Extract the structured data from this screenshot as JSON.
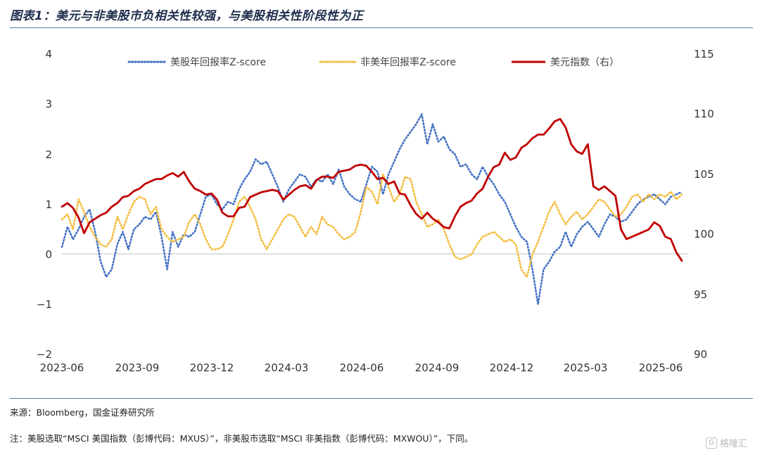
{
  "header": {
    "title": "图表1：美元与非美股市负相关性较强，与美股相关性阶段性为正"
  },
  "footer": {
    "source": "来源：Bloomberg，国金证券研究所",
    "note": "注：美股选取“MSCI 美国指数（彭博代码：MXUS）”，非美股市选取“MSCI 非美指数（彭博代码：MXWOU）”，下同。",
    "watermark": "格隆汇",
    "watermark_mark": "G"
  },
  "chart_data": {
    "type": "line",
    "title": "",
    "xlabel": "",
    "ylabel": "",
    "x_ticks": [
      "2023-06",
      "2023-09",
      "2023-12",
      "2024-03",
      "2024-06",
      "2024-09",
      "2024-12",
      "2025-03",
      "2025-06"
    ],
    "x_range": [
      "2023-06-01",
      "2025-08-01"
    ],
    "ylim": [
      -2,
      4
    ],
    "y_ticks": [
      4,
      3,
      2,
      1,
      0,
      -1,
      -2
    ],
    "y_tick_labels": [
      "4",
      "3",
      "2",
      "1",
      "0",
      "−1",
      "−2"
    ],
    "y2lim": [
      90,
      115
    ],
    "y2_ticks": [
      115,
      110,
      105,
      100,
      95,
      90
    ],
    "grid": false,
    "legend": "top",
    "colors": {
      "us": "#4472c4",
      "nonus": "#f4bc3c",
      "dxy": "#c00000",
      "axis": "#bfbfbf"
    },
    "series": [
      {
        "name": "美股年回报率Z-score",
        "axis": "left",
        "style": "dotted",
        "x": [
          "2023-06-01",
          "2023-06-08",
          "2023-06-15",
          "2023-06-22",
          "2023-06-29",
          "2023-07-06",
          "2023-07-13",
          "2023-07-20",
          "2023-07-27",
          "2023-08-03",
          "2023-08-10",
          "2023-08-17",
          "2023-08-24",
          "2023-08-31",
          "2023-09-07",
          "2023-09-14",
          "2023-09-21",
          "2023-09-28",
          "2023-10-05",
          "2023-10-12",
          "2023-10-19",
          "2023-10-26",
          "2023-11-02",
          "2023-11-09",
          "2023-11-16",
          "2023-11-23",
          "2023-11-30",
          "2023-12-07",
          "2023-12-14",
          "2023-12-21",
          "2023-12-28",
          "2024-01-04",
          "2024-01-11",
          "2024-01-18",
          "2024-01-25",
          "2024-02-01",
          "2024-02-08",
          "2024-02-15",
          "2024-02-22",
          "2024-02-29",
          "2024-03-07",
          "2024-03-14",
          "2024-03-21",
          "2024-03-28",
          "2024-04-04",
          "2024-04-11",
          "2024-04-18",
          "2024-04-25",
          "2024-05-02",
          "2024-05-09",
          "2024-05-16",
          "2024-05-23",
          "2024-05-30",
          "2024-06-06",
          "2024-06-13",
          "2024-06-20",
          "2024-06-27",
          "2024-07-04",
          "2024-07-11",
          "2024-07-18",
          "2024-07-25",
          "2024-08-01",
          "2024-08-08",
          "2024-08-15",
          "2024-08-22",
          "2024-08-29",
          "2024-09-05",
          "2024-09-12",
          "2024-09-19",
          "2024-09-26",
          "2024-10-03",
          "2024-10-10",
          "2024-10-17",
          "2024-10-24",
          "2024-10-31",
          "2024-11-07",
          "2024-11-14",
          "2024-11-21",
          "2024-11-28",
          "2024-12-05",
          "2024-12-12",
          "2024-12-19",
          "2024-12-26",
          "2025-01-02",
          "2025-01-09",
          "2025-01-16",
          "2025-01-23",
          "2025-01-30",
          "2025-02-06",
          "2025-02-13",
          "2025-02-20",
          "2025-02-27",
          "2025-03-06",
          "2025-03-13",
          "2025-03-20",
          "2025-03-27",
          "2025-04-03",
          "2025-04-10",
          "2025-04-17",
          "2025-04-24",
          "2025-05-01",
          "2025-05-08",
          "2025-05-15",
          "2025-05-22",
          "2025-05-29",
          "2025-06-05",
          "2025-06-12",
          "2025-06-19",
          "2025-06-26",
          "2025-07-03",
          "2025-07-10",
          "2025-07-17",
          "2025-07-24"
        ],
        "values": [
          0.15,
          0.55,
          0.3,
          0.5,
          0.75,
          0.9,
          0.45,
          -0.15,
          -0.45,
          -0.3,
          0.2,
          0.45,
          0.1,
          0.5,
          0.6,
          0.75,
          0.7,
          0.85,
          0.35,
          -0.3,
          0.45,
          0.15,
          0.4,
          0.35,
          0.45,
          0.8,
          1.15,
          1.2,
          1.0,
          0.9,
          1.05,
          1.0,
          1.3,
          1.5,
          1.65,
          1.9,
          1.8,
          1.85,
          1.6,
          1.35,
          1.05,
          1.3,
          1.45,
          1.6,
          1.55,
          1.35,
          1.5,
          1.45,
          1.6,
          1.4,
          1.7,
          1.35,
          1.2,
          1.1,
          1.05,
          1.4,
          1.75,
          1.65,
          1.2,
          1.6,
          1.85,
          2.1,
          2.3,
          2.45,
          2.6,
          2.8,
          2.2,
          2.6,
          2.25,
          2.35,
          2.1,
          2.0,
          1.75,
          1.8,
          1.6,
          1.5,
          1.75,
          1.55,
          1.4,
          1.2,
          1.05,
          0.8,
          0.55,
          0.35,
          0.25,
          -0.3,
          -1.0,
          -0.3,
          -0.15,
          0.05,
          0.15,
          0.45,
          0.15,
          0.4,
          0.55,
          0.65,
          0.5,
          0.35,
          0.6,
          0.8,
          0.75,
          0.65,
          0.7,
          0.85,
          1.0,
          1.1,
          1.15,
          1.2,
          1.1,
          1.0,
          1.15,
          1.2,
          1.25
        ]
      },
      {
        "name": "非美年回报率Z-score",
        "axis": "left",
        "style": "dotted",
        "x": [
          "2023-06-01",
          "2023-06-08",
          "2023-06-15",
          "2023-06-22",
          "2023-06-29",
          "2023-07-06",
          "2023-07-13",
          "2023-07-20",
          "2023-07-27",
          "2023-08-03",
          "2023-08-10",
          "2023-08-17",
          "2023-08-24",
          "2023-08-31",
          "2023-09-07",
          "2023-09-14",
          "2023-09-21",
          "2023-09-28",
          "2023-10-05",
          "2023-10-12",
          "2023-10-19",
          "2023-10-26",
          "2023-11-02",
          "2023-11-09",
          "2023-11-16",
          "2023-11-23",
          "2023-11-30",
          "2023-12-07",
          "2023-12-14",
          "2023-12-21",
          "2023-12-28",
          "2024-01-04",
          "2024-01-11",
          "2024-01-18",
          "2024-01-25",
          "2024-02-01",
          "2024-02-08",
          "2024-02-15",
          "2024-02-22",
          "2024-02-29",
          "2024-03-07",
          "2024-03-14",
          "2024-03-21",
          "2024-03-28",
          "2024-04-04",
          "2024-04-11",
          "2024-04-18",
          "2024-04-25",
          "2024-05-02",
          "2024-05-09",
          "2024-05-16",
          "2024-05-23",
          "2024-05-30",
          "2024-06-06",
          "2024-06-13",
          "2024-06-20",
          "2024-06-27",
          "2024-07-04",
          "2024-07-11",
          "2024-07-18",
          "2024-07-25",
          "2024-08-01",
          "2024-08-08",
          "2024-08-15",
          "2024-08-22",
          "2024-08-29",
          "2024-09-05",
          "2024-09-12",
          "2024-09-19",
          "2024-09-26",
          "2024-10-03",
          "2024-10-10",
          "2024-10-17",
          "2024-10-24",
          "2024-10-31",
          "2024-11-07",
          "2024-11-14",
          "2024-11-21",
          "2024-11-28",
          "2024-12-05",
          "2024-12-12",
          "2024-12-19",
          "2024-12-26",
          "2025-01-02",
          "2025-01-09",
          "2025-01-16",
          "2025-01-23",
          "2025-01-30",
          "2025-02-06",
          "2025-02-13",
          "2025-02-20",
          "2025-02-27",
          "2025-03-06",
          "2025-03-13",
          "2025-03-20",
          "2025-03-27",
          "2025-04-03",
          "2025-04-10",
          "2025-04-17",
          "2025-04-24",
          "2025-05-01",
          "2025-05-08",
          "2025-05-15",
          "2025-05-22",
          "2025-05-29",
          "2025-06-05",
          "2025-06-12",
          "2025-06-19",
          "2025-06-26",
          "2025-07-03",
          "2025-07-10",
          "2025-07-17",
          "2025-07-24"
        ],
        "values": [
          0.7,
          0.8,
          0.5,
          1.1,
          0.85,
          0.55,
          0.35,
          0.2,
          0.15,
          0.3,
          0.75,
          0.5,
          0.8,
          1.05,
          1.15,
          1.1,
          0.8,
          0.95,
          0.5,
          0.35,
          0.25,
          0.3,
          0.35,
          0.65,
          0.8,
          0.6,
          0.3,
          0.1,
          0.1,
          0.15,
          0.4,
          0.7,
          1.05,
          1.15,
          0.95,
          0.7,
          0.3,
          0.1,
          0.3,
          0.5,
          0.7,
          0.8,
          0.75,
          0.55,
          0.35,
          0.55,
          0.4,
          0.75,
          0.6,
          0.55,
          0.4,
          0.3,
          0.35,
          0.45,
          0.85,
          1.35,
          1.25,
          1.0,
          1.6,
          1.35,
          1.05,
          1.2,
          1.55,
          1.5,
          1.05,
          0.8,
          0.55,
          0.6,
          0.7,
          0.5,
          0.2,
          -0.05,
          -0.1,
          -0.05,
          0.0,
          0.2,
          0.35,
          0.4,
          0.45,
          0.35,
          0.25,
          0.3,
          0.2,
          -0.3,
          -0.45,
          0.0,
          0.25,
          0.55,
          0.85,
          1.05,
          0.8,
          0.6,
          0.75,
          0.85,
          0.7,
          0.8,
          0.95,
          1.1,
          1.05,
          0.9,
          0.75,
          0.8,
          0.95,
          1.15,
          1.2,
          1.05,
          1.2,
          1.1,
          1.2,
          1.15,
          1.25,
          1.1,
          1.2
        ]
      },
      {
        "name": "美元指数（右）",
        "axis": "right",
        "style": "solid",
        "x": [
          "2023-06-01",
          "2023-06-08",
          "2023-06-15",
          "2023-06-22",
          "2023-06-29",
          "2023-07-06",
          "2023-07-13",
          "2023-07-20",
          "2023-07-27",
          "2023-08-03",
          "2023-08-10",
          "2023-08-17",
          "2023-08-24",
          "2023-08-31",
          "2023-09-07",
          "2023-09-14",
          "2023-09-21",
          "2023-09-28",
          "2023-10-05",
          "2023-10-12",
          "2023-10-19",
          "2023-10-26",
          "2023-11-02",
          "2023-11-09",
          "2023-11-16",
          "2023-11-23",
          "2023-11-30",
          "2023-12-07",
          "2023-12-14",
          "2023-12-21",
          "2023-12-28",
          "2024-01-04",
          "2024-01-11",
          "2024-01-18",
          "2024-01-25",
          "2024-02-01",
          "2024-02-08",
          "2024-02-15",
          "2024-02-22",
          "2024-02-29",
          "2024-03-07",
          "2024-03-14",
          "2024-03-21",
          "2024-03-28",
          "2024-04-04",
          "2024-04-11",
          "2024-04-18",
          "2024-04-25",
          "2024-05-02",
          "2024-05-09",
          "2024-05-16",
          "2024-05-23",
          "2024-05-30",
          "2024-06-06",
          "2024-06-13",
          "2024-06-20",
          "2024-06-27",
          "2024-07-04",
          "2024-07-11",
          "2024-07-18",
          "2024-07-25",
          "2024-08-01",
          "2024-08-08",
          "2024-08-15",
          "2024-08-22",
          "2024-08-29",
          "2024-09-05",
          "2024-09-12",
          "2024-09-19",
          "2024-09-26",
          "2024-10-03",
          "2024-10-10",
          "2024-10-17",
          "2024-10-24",
          "2024-10-31",
          "2024-11-07",
          "2024-11-14",
          "2024-11-21",
          "2024-11-28",
          "2024-12-05",
          "2024-12-12",
          "2024-12-19",
          "2024-12-26",
          "2025-01-02",
          "2025-01-09",
          "2025-01-16",
          "2025-01-23",
          "2025-01-30",
          "2025-02-06",
          "2025-02-13",
          "2025-02-20",
          "2025-02-27",
          "2025-03-06",
          "2025-03-13",
          "2025-03-20",
          "2025-03-27",
          "2025-04-03",
          "2025-04-10",
          "2025-04-17",
          "2025-04-24",
          "2025-05-01",
          "2025-05-08",
          "2025-05-15",
          "2025-05-22",
          "2025-05-29",
          "2025-06-05",
          "2025-06-12",
          "2025-06-19",
          "2025-06-26",
          "2025-07-03",
          "2025-07-10",
          "2025-07-17",
          "2025-07-24"
        ],
        "values": [
          102.3,
          102.6,
          102.2,
          101.4,
          100.1,
          101.0,
          101.3,
          101.6,
          101.8,
          102.3,
          102.6,
          103.1,
          103.2,
          103.6,
          103.8,
          104.2,
          104.4,
          104.6,
          104.6,
          104.9,
          105.1,
          104.8,
          105.2,
          104.4,
          103.8,
          103.6,
          103.3,
          103.4,
          102.9,
          101.8,
          101.5,
          101.5,
          102.2,
          102.3,
          103.1,
          103.3,
          103.5,
          103.6,
          103.7,
          103.6,
          102.9,
          103.3,
          103.7,
          104.0,
          104.1,
          103.8,
          104.5,
          104.8,
          104.8,
          104.7,
          105.2,
          105.3,
          105.4,
          105.7,
          105.8,
          105.7,
          105.2,
          104.6,
          104.7,
          104.2,
          104.4,
          103.4,
          103.3,
          102.4,
          101.7,
          101.3,
          101.8,
          101.3,
          101.0,
          100.6,
          100.5,
          101.5,
          102.3,
          102.6,
          102.8,
          103.4,
          103.8,
          104.8,
          105.6,
          105.8,
          106.8,
          106.2,
          106.4,
          107.2,
          107.5,
          108.0,
          108.3,
          108.3,
          108.8,
          109.4,
          109.6,
          108.9,
          107.5,
          106.9,
          106.7,
          107.5,
          104.0,
          103.7,
          104.0,
          103.6,
          103.2,
          100.4,
          99.6,
          99.8,
          100.0,
          100.2,
          100.4,
          101.0,
          100.7,
          99.8,
          99.6,
          98.5,
          97.8
        ]
      }
    ]
  }
}
